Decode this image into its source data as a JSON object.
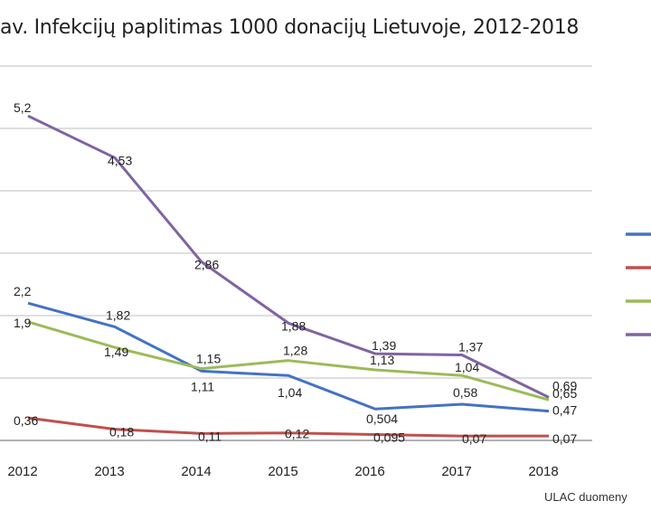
{
  "title": "av. Infekcijų paplitimas 1000 donacijų Lietuvoje, 2012-2018",
  "source": "ULAC duomeny",
  "colors": {
    "grid": "#cccccc",
    "axis": "#999999"
  },
  "chart_data": {
    "type": "line",
    "title": "av. Infekcijų paplitimas 1000 donacijų Lietuvoje, 2012-2018",
    "xlabel": "",
    "ylabel": "",
    "categories": [
      "2012",
      "2013",
      "2014",
      "2015",
      "2016",
      "2017",
      "2018"
    ],
    "ylim": [
      0,
      6
    ],
    "grid": true,
    "legend": "right",
    "series": [
      {
        "color": "#4472c4",
        "values": [
          2.2,
          1.82,
          1.11,
          1.04,
          0.504,
          0.58,
          0.47
        ],
        "labels": [
          "2,2",
          "1,82",
          "1,11",
          "1,04",
          "0,504",
          "0,58",
          "0,47"
        ]
      },
      {
        "color": "#c0504d",
        "values": [
          0.36,
          0.18,
          0.11,
          0.12,
          0.095,
          0.07,
          0.07
        ],
        "labels": [
          "0,36",
          "0,18",
          "0,11",
          "0,12",
          "0,095",
          "0,07",
          "0,07"
        ]
      },
      {
        "color": "#9bbb59",
        "values": [
          1.9,
          1.49,
          1.15,
          1.28,
          1.13,
          1.04,
          0.65
        ],
        "labels": [
          "1,9",
          "1,49",
          "1,15",
          "1,28",
          "1,13",
          "1,04",
          "0,65"
        ]
      },
      {
        "color": "#8064a2",
        "values": [
          5.2,
          4.53,
          2.86,
          1.88,
          1.39,
          1.37,
          0.69
        ],
        "labels": [
          "5,2",
          "4,53",
          "2,86",
          "1,88",
          "1,39",
          "1,37",
          "0,69"
        ]
      }
    ]
  }
}
